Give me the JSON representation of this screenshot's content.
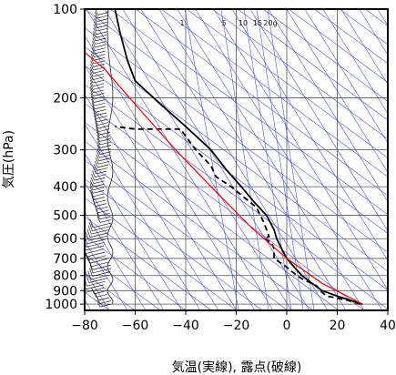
{
  "chart_data": {
    "type": "line",
    "title": "",
    "xlabel": "気温(実線), 露点(破線)",
    "ylabel": "気圧(hPa)",
    "x_ticks": [
      -80,
      -60,
      -40,
      -20,
      0,
      20,
      40
    ],
    "y_ticks": [
      100,
      200,
      300,
      400,
      500,
      600,
      700,
      800,
      900,
      1000
    ],
    "xlim": [
      -80,
      40
    ],
    "ylim": [
      1050,
      100
    ],
    "y_scale": "log",
    "mixing_ratio_labels": [
      "1",
      "5",
      "10",
      "15",
      "20g"
    ],
    "grid": true,
    "series": [
      {
        "style": "solid",
        "color": "#000000",
        "points": [
          [
            30,
            1000
          ],
          [
            26,
            975
          ],
          [
            20,
            940
          ],
          [
            14,
            900
          ],
          [
            10,
            850
          ],
          [
            6,
            800
          ],
          [
            3,
            750
          ],
          [
            0,
            700
          ],
          [
            -2,
            650
          ],
          [
            -4,
            600
          ],
          [
            -5,
            560
          ],
          [
            -8,
            500
          ],
          [
            -13,
            450
          ],
          [
            -18,
            400
          ],
          [
            -24,
            350
          ],
          [
            -30,
            300
          ],
          [
            -40,
            250
          ],
          [
            -50,
            210
          ],
          [
            -60,
            175
          ],
          [
            -63,
            150
          ],
          [
            -66,
            120
          ],
          [
            -68,
            100
          ]
        ]
      },
      {
        "style": "dashed",
        "color": "#000000",
        "points": [
          [
            29,
            1000
          ],
          [
            24,
            970
          ],
          [
            16,
            940
          ],
          [
            13,
            900
          ],
          [
            12,
            870
          ],
          [
            10,
            850
          ],
          [
            7,
            830
          ],
          [
            4,
            800
          ],
          [
            0,
            750
          ],
          [
            -5,
            700
          ],
          [
            -5,
            650
          ],
          [
            -6,
            620
          ],
          [
            -9,
            600
          ],
          [
            -7,
            590
          ],
          [
            -8,
            560
          ],
          [
            -9,
            530
          ],
          [
            -11,
            490
          ],
          [
            -12,
            470
          ],
          [
            -19,
            420
          ],
          [
            -22,
            400
          ],
          [
            -28,
            370
          ],
          [
            -30,
            340
          ],
          [
            -36,
            300
          ],
          [
            -40,
            270
          ],
          [
            -42,
            255
          ],
          [
            -60,
            255
          ],
          [
            -68,
            250
          ]
        ]
      },
      {
        "style": "solid",
        "color": "#ff0000",
        "points": [
          [
            30,
            1000
          ],
          [
            14,
            850
          ],
          [
            0,
            700
          ],
          [
            -14,
            550
          ],
          [
            -30,
            400
          ],
          [
            -44,
            300
          ],
          [
            -58,
            220
          ],
          [
            -72,
            160
          ],
          [
            -80,
            140
          ]
        ]
      }
    ]
  }
}
